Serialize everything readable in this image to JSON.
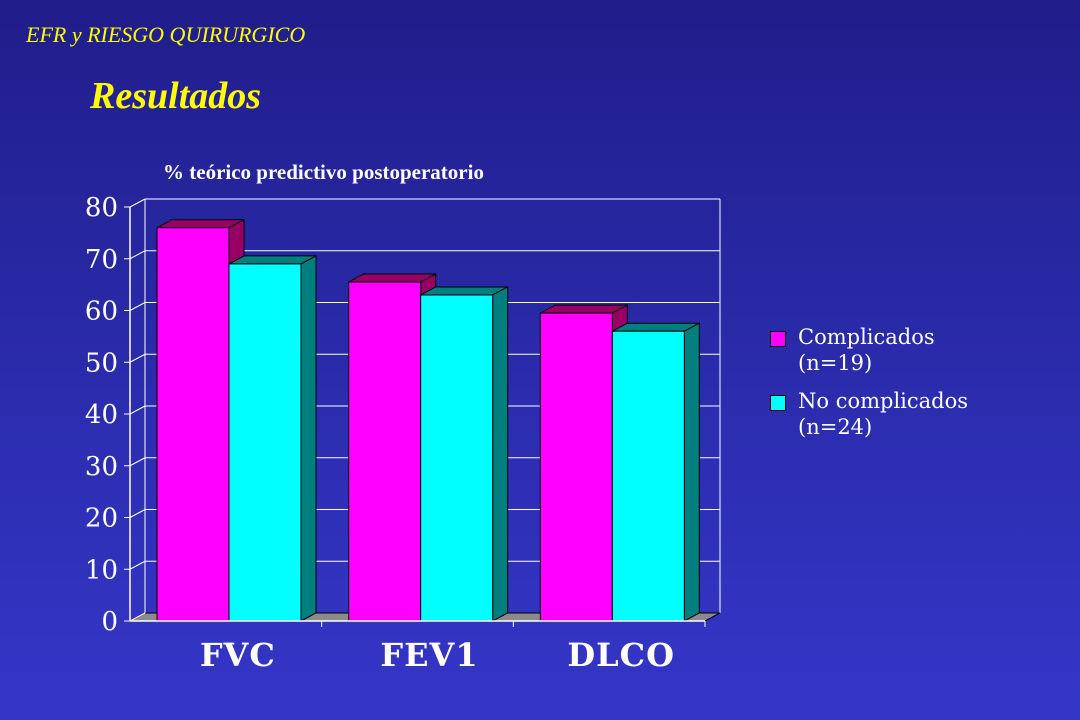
{
  "header": {
    "section": "EFR y RIESGO QUIRURGICO",
    "title": "Resultados"
  },
  "colors": {
    "complicados": "#ff00ff",
    "complicados_side": "#990066",
    "no_complicados": "#00ffff",
    "no_complicados_side": "#007f7f",
    "axis": "#ffffff",
    "grid": "#ffffff",
    "floor": "#8a8a8a",
    "title": "#ffff00"
  },
  "chart_data": {
    "type": "bar",
    "title": "% teórico predictivo postoperatorio",
    "categories": [
      "FVC",
      "FEV1",
      "DLCO"
    ],
    "series": [
      {
        "name_line1": "Complicados",
        "name_line2": "(n=19)",
        "values": [
          76,
          65.5,
          59.5
        ]
      },
      {
        "name_line1": "No complicados",
        "name_line2": "(n=24)",
        "values": [
          69,
          63,
          56
        ]
      }
    ],
    "ylim": [
      0,
      80
    ],
    "yticks": [
      "0",
      "10",
      "20",
      "30",
      "40",
      "50",
      "60",
      "70",
      "80"
    ],
    "grid": true,
    "legend_position": "right",
    "style": "3d-clustered"
  }
}
